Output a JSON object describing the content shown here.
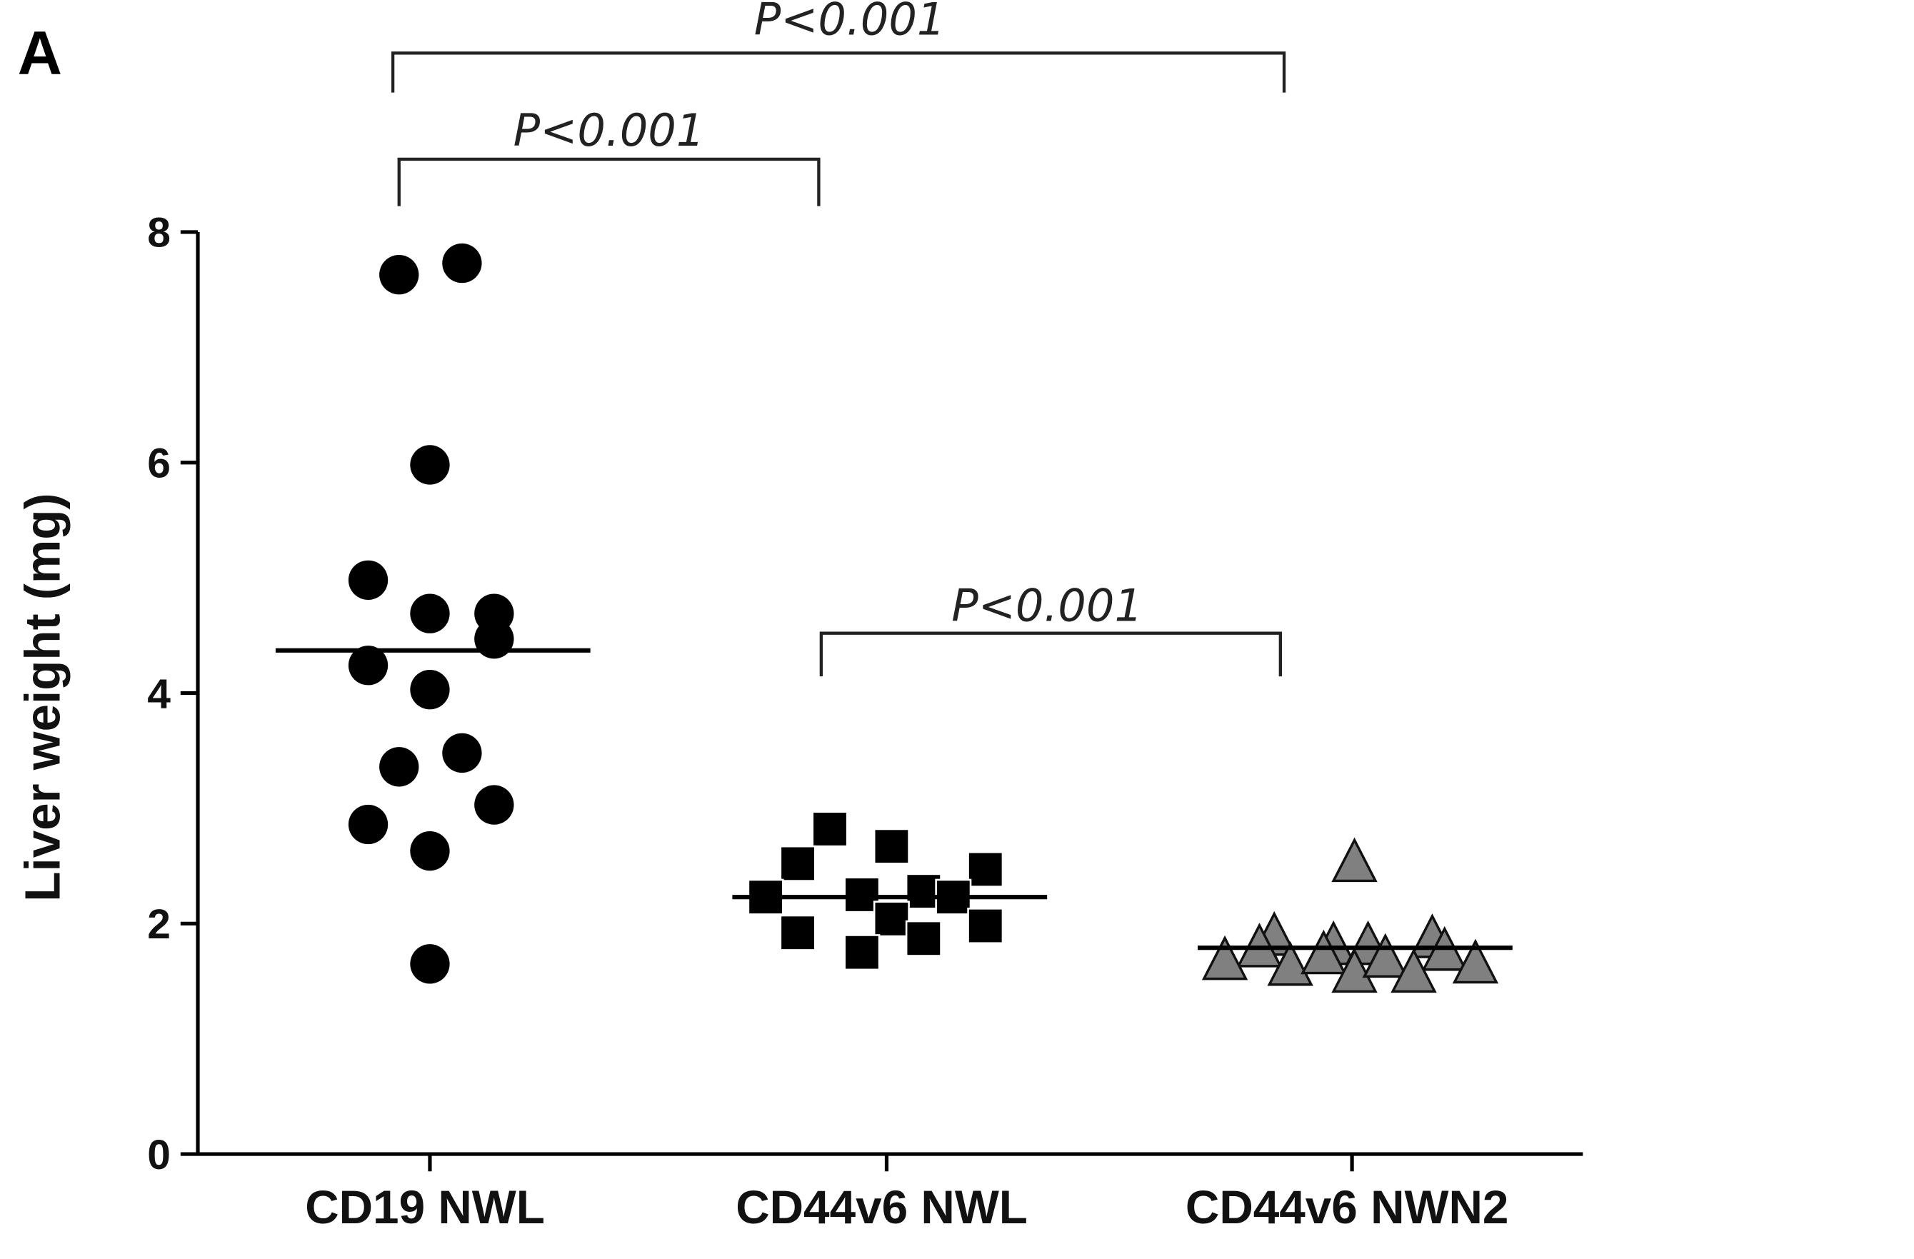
{
  "panel_label": "A",
  "chart_data": {
    "type": "scatter",
    "subtype": "dot-plot with mean lines",
    "ylabel": "Liver weight (mg)",
    "ylim": [
      0,
      8
    ],
    "yticks": [
      0,
      2,
      4,
      6,
      8
    ],
    "categories": [
      "CD19 NWL",
      "CD44v6 NWL",
      "CD44v6 NWN2"
    ],
    "grid": false,
    "series": [
      {
        "category": "CD19 NWL",
        "marker": "circle",
        "color": "#000000",
        "values": [
          7.63,
          7.73,
          5.98,
          4.98,
          4.69,
          4.69,
          4.47,
          4.24,
          4.03,
          3.48,
          3.36,
          3.03,
          2.86,
          2.63,
          1.65
        ],
        "mean": 4.37
      },
      {
        "category": "CD44v6 NWL",
        "marker": "square",
        "color": "#000000",
        "values": [
          2.82,
          2.52,
          2.67,
          2.47,
          2.23,
          2.25,
          2.28,
          2.23,
          1.92,
          2.04,
          1.87,
          1.98,
          1.75
        ],
        "mean": 2.23
      },
      {
        "category": "CD44v6 NWN2",
        "marker": "triangle",
        "color": "#808080",
        "values": [
          2.51,
          1.87,
          1.77,
          1.79,
          1.79,
          1.85,
          1.74,
          1.66,
          1.61,
          1.71,
          1.55,
          1.68,
          1.55,
          1.63
        ],
        "mean": 1.79
      }
    ],
    "comparisons": [
      {
        "from": "CD19 NWL",
        "to": "CD44v6 NWN2",
        "label": "P<0.001"
      },
      {
        "from": "CD19 NWL",
        "to": "CD44v6 NWL",
        "label": "P<0.001"
      },
      {
        "from": "CD44v6 NWL",
        "to": "CD44v6 NWN2",
        "label": "P<0.001"
      }
    ]
  }
}
